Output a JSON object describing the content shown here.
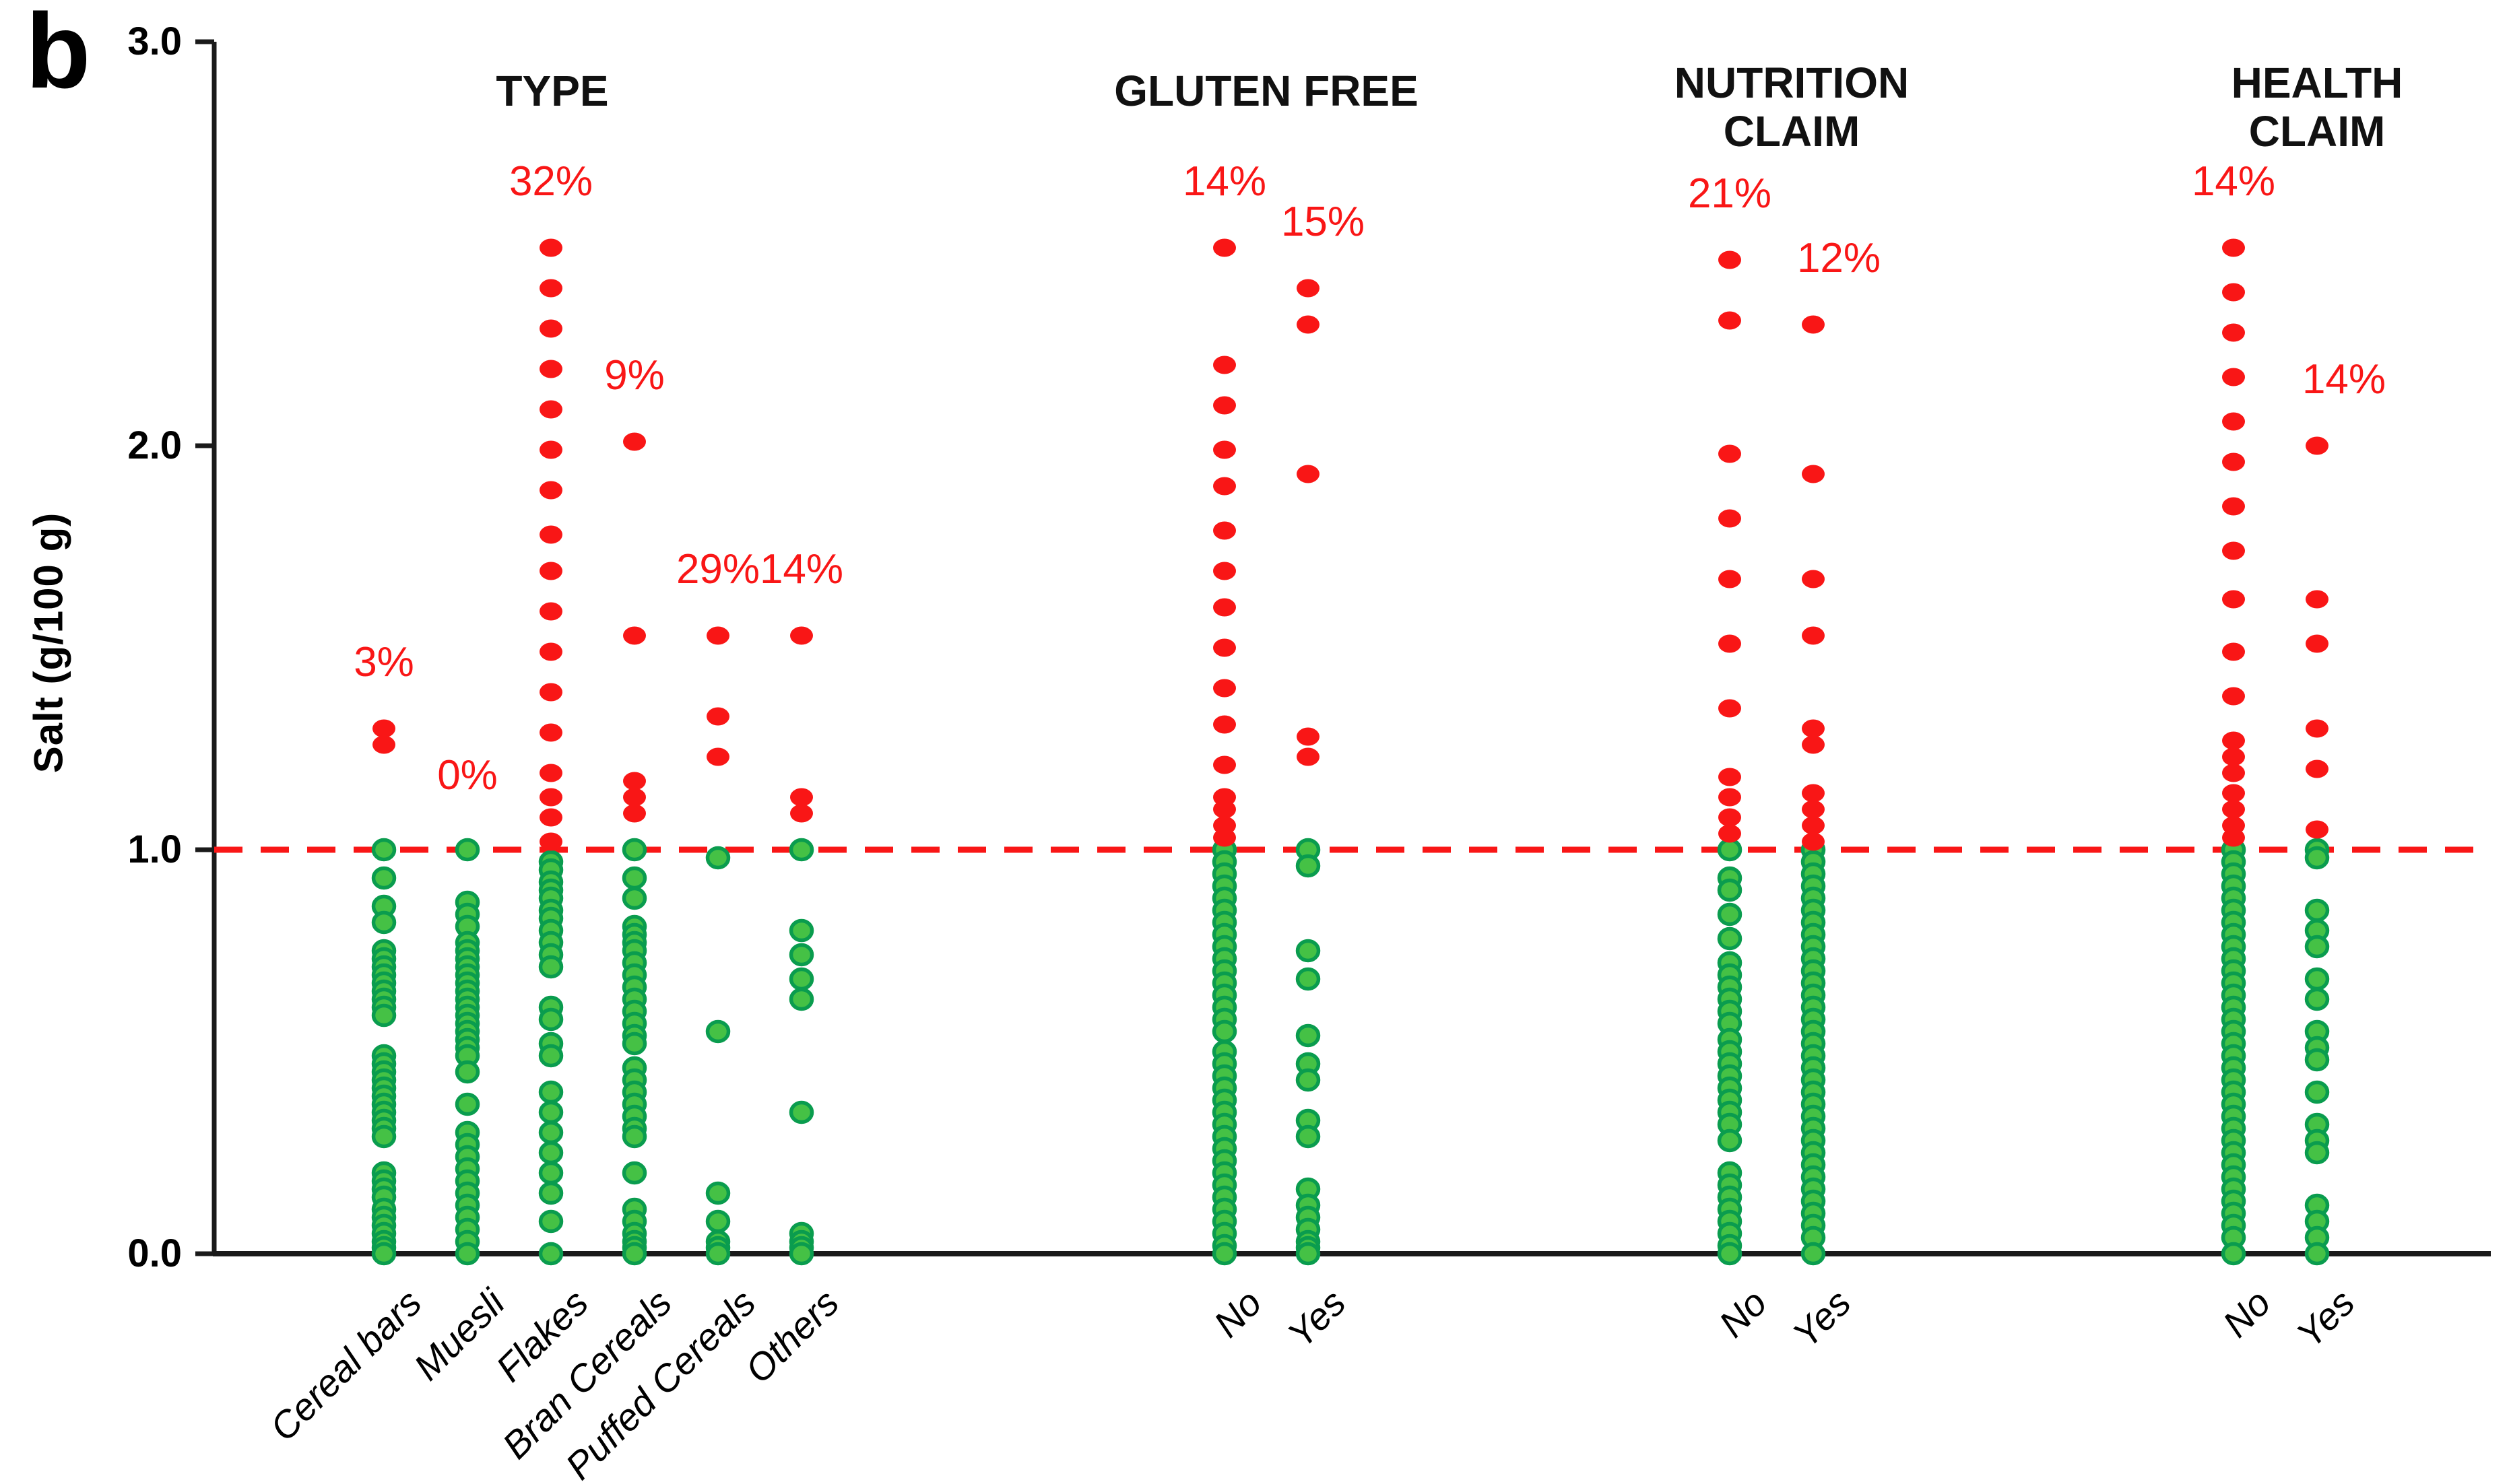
{
  "figure_label": "b",
  "chart_data": {
    "type": "scatter",
    "subtype": "strip-dot-plot",
    "title": "",
    "ylabel": "Salt (g/100 g)",
    "xlabel": "",
    "ylim": [
      0.0,
      3.0
    ],
    "yticks": [
      {
        "label": "3.0",
        "value": 3.0
      },
      {
        "label": "2.0",
        "value": 2.0
      },
      {
        "label": "1.0",
        "value": 1.0
      },
      {
        "label": "0.0",
        "value": 0.0
      }
    ],
    "threshold_line": {
      "value": 1.0,
      "color": "#f91616",
      "style": "dashed"
    },
    "colors": {
      "above_threshold_dot": "#f91616",
      "below_threshold_dot_fill": "#45c145",
      "below_threshold_dot_stroke": "#0a9c4e",
      "percent_label": "#f91616",
      "axis": "#1a1a1a"
    },
    "legend_note": "red dots = salt > 1.0 g/100 g; green dots = salt <= 1.0 g/100 g; red % = share of products above threshold",
    "groups": [
      {
        "id": "type",
        "title": "TYPE",
        "columns": [
          {
            "id": "cereal_bars",
            "label": "Cereal bars",
            "percent_above": "3%",
            "red": [
              1.3,
              1.26
            ],
            "green": [
              1.0,
              0.93,
              0.86,
              0.82,
              0.75,
              0.73,
              0.71,
              0.69,
              0.67,
              0.65,
              0.63,
              0.61,
              0.59,
              0.49,
              0.47,
              0.45,
              0.43,
              0.41,
              0.39,
              0.37,
              0.35,
              0.33,
              0.31,
              0.29,
              0.2,
              0.18,
              0.16,
              0.14,
              0.11,
              0.09,
              0.07,
              0.05,
              0.03,
              0.015,
              0.0
            ]
          },
          {
            "id": "muesli",
            "label": "Muesli",
            "percent_above": "0%",
            "red": [],
            "green": [
              1.0,
              0.87,
              0.84,
              0.81,
              0.77,
              0.75,
              0.73,
              0.71,
              0.69,
              0.67,
              0.65,
              0.63,
              0.61,
              0.59,
              0.57,
              0.55,
              0.53,
              0.51,
              0.49,
              0.45,
              0.37,
              0.3,
              0.27,
              0.24,
              0.21,
              0.18,
              0.15,
              0.12,
              0.09,
              0.06,
              0.03,
              0.0
            ]
          },
          {
            "id": "flakes",
            "label": "Flakes",
            "percent_above": "32%",
            "red": [
              2.49,
              2.39,
              2.29,
              2.19,
              2.09,
              1.99,
              1.89,
              1.78,
              1.69,
              1.59,
              1.49,
              1.39,
              1.29,
              1.19,
              1.13,
              1.08,
              1.02
            ],
            "green": [
              0.97,
              0.95,
              0.92,
              0.9,
              0.88,
              0.85,
              0.83,
              0.8,
              0.77,
              0.74,
              0.71,
              0.61,
              0.58,
              0.52,
              0.49,
              0.4,
              0.35,
              0.3,
              0.25,
              0.2,
              0.15,
              0.08,
              0.0
            ]
          },
          {
            "id": "bran_cereals",
            "label": "Bran Cereals",
            "percent_above": "9%",
            "red": [
              2.01,
              1.53,
              1.17,
              1.13,
              1.09
            ],
            "green": [
              1.0,
              0.93,
              0.88,
              0.81,
              0.79,
              0.77,
              0.75,
              0.72,
              0.69,
              0.66,
              0.63,
              0.6,
              0.57,
              0.54,
              0.52,
              0.46,
              0.43,
              0.4,
              0.37,
              0.34,
              0.31,
              0.29,
              0.2,
              0.11,
              0.08,
              0.05,
              0.03,
              0.015,
              0.0
            ]
          },
          {
            "id": "puffed_cereals",
            "label": "Puffed Cereals",
            "percent_above": "29%",
            "red": [
              1.53,
              1.33,
              1.23
            ],
            "green": [
              0.98,
              0.55,
              0.15,
              0.08,
              0.03,
              0.015,
              0.0
            ]
          },
          {
            "id": "others",
            "label": "Others",
            "percent_above": "14%",
            "red": [
              1.53,
              1.13,
              1.09
            ],
            "green": [
              1.0,
              0.8,
              0.74,
              0.68,
              0.63,
              0.35,
              0.05,
              0.03,
              0.015,
              0.0
            ]
          }
        ]
      },
      {
        "id": "gluten_free",
        "title": "GLUTEN FREE",
        "columns": [
          {
            "id": "gluten_no",
            "label": "No",
            "percent_above": "14%",
            "red": [
              2.49,
              2.2,
              2.1,
              1.99,
              1.9,
              1.79,
              1.69,
              1.6,
              1.5,
              1.4,
              1.31,
              1.21,
              1.13,
              1.1,
              1.06,
              1.03
            ],
            "green": [
              1.0,
              0.97,
              0.94,
              0.91,
              0.88,
              0.85,
              0.82,
              0.79,
              0.76,
              0.73,
              0.7,
              0.67,
              0.64,
              0.61,
              0.58,
              0.55,
              0.5,
              0.47,
              0.44,
              0.41,
              0.38,
              0.35,
              0.32,
              0.29,
              0.26,
              0.23,
              0.2,
              0.17,
              0.14,
              0.11,
              0.08,
              0.05,
              0.02,
              0.0
            ]
          },
          {
            "id": "gluten_yes",
            "label": "Yes",
            "percent_above": "15%",
            "red": [
              2.39,
              2.3,
              1.93,
              1.28,
              1.23
            ],
            "green": [
              1.0,
              0.96,
              0.75,
              0.68,
              0.54,
              0.47,
              0.43,
              0.33,
              0.29,
              0.16,
              0.12,
              0.09,
              0.06,
              0.03,
              0.015,
              0.0
            ]
          }
        ]
      },
      {
        "id": "nutrition_claim",
        "title": "NUTRITION\nCLAIM",
        "columns": [
          {
            "id": "nutrition_no",
            "label": "No",
            "percent_above": "21%",
            "red": [
              2.46,
              2.31,
              1.98,
              1.82,
              1.67,
              1.51,
              1.35,
              1.18,
              1.13,
              1.08,
              1.04
            ],
            "green": [
              1.0,
              0.93,
              0.9,
              0.84,
              0.78,
              0.72,
              0.69,
              0.66,
              0.63,
              0.6,
              0.57,
              0.53,
              0.5,
              0.47,
              0.44,
              0.41,
              0.38,
              0.35,
              0.32,
              0.28,
              0.2,
              0.17,
              0.14,
              0.11,
              0.08,
              0.05,
              0.02,
              0.0
            ]
          },
          {
            "id": "nutrition_yes",
            "label": "Yes",
            "percent_above": "12%",
            "red": [
              2.3,
              1.93,
              1.67,
              1.53,
              1.3,
              1.26,
              1.14,
              1.1,
              1.06,
              1.02
            ],
            "green": [
              1.0,
              0.97,
              0.94,
              0.91,
              0.88,
              0.85,
              0.82,
              0.79,
              0.76,
              0.73,
              0.7,
              0.67,
              0.64,
              0.61,
              0.58,
              0.55,
              0.52,
              0.49,
              0.46,
              0.43,
              0.4,
              0.37,
              0.34,
              0.31,
              0.28,
              0.25,
              0.22,
              0.19,
              0.16,
              0.13,
              0.1,
              0.07,
              0.04,
              0.0
            ]
          }
        ]
      },
      {
        "id": "health_claim",
        "title": "HEALTH\nCLAIM",
        "columns": [
          {
            "id": "health_no",
            "label": "No",
            "percent_above": "14%",
            "red": [
              2.49,
              2.38,
              2.28,
              2.17,
              2.06,
              1.96,
              1.85,
              1.74,
              1.62,
              1.49,
              1.38,
              1.27,
              1.23,
              1.19,
              1.14,
              1.1,
              1.06,
              1.03
            ],
            "green": [
              1.0,
              0.97,
              0.94,
              0.91,
              0.88,
              0.85,
              0.82,
              0.79,
              0.76,
              0.73,
              0.7,
              0.67,
              0.64,
              0.61,
              0.58,
              0.55,
              0.52,
              0.49,
              0.46,
              0.43,
              0.4,
              0.37,
              0.34,
              0.31,
              0.28,
              0.25,
              0.22,
              0.19,
              0.16,
              0.13,
              0.1,
              0.07,
              0.04,
              0.0
            ]
          },
          {
            "id": "health_yes",
            "label": "Yes",
            "percent_above": "14%",
            "red": [
              2.0,
              1.62,
              1.51,
              1.3,
              1.2,
              1.05
            ],
            "green": [
              1.0,
              0.98,
              0.85,
              0.8,
              0.76,
              0.68,
              0.63,
              0.55,
              0.51,
              0.48,
              0.4,
              0.32,
              0.28,
              0.25,
              0.12,
              0.08,
              0.04,
              0.0
            ]
          }
        ]
      }
    ]
  }
}
